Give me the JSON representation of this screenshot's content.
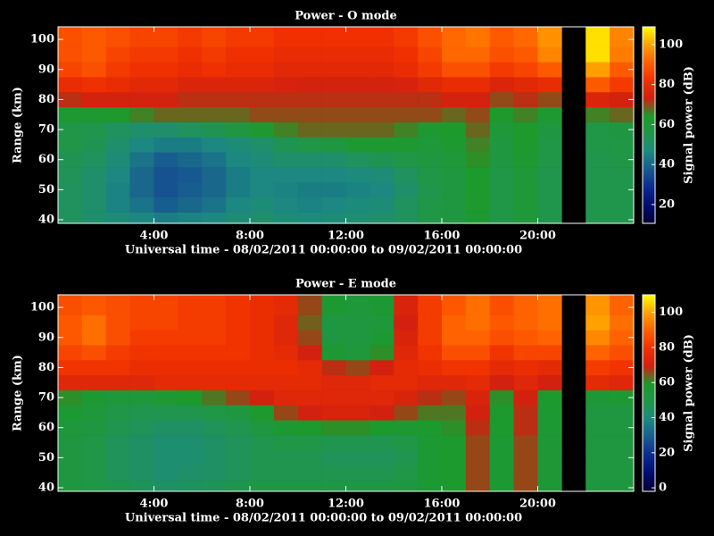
{
  "chart_data": [
    {
      "type": "heatmap",
      "title": "Power - O mode",
      "x_label": "Universal time - 08/02/2011 00:00:00 to 09/02/2011 00:00:00",
      "y_label": "Range (km)",
      "x": [
        0.5,
        1.5,
        2.5,
        3.5,
        4.5,
        5.5,
        6.5,
        7.5,
        8.5,
        9.5,
        10.5,
        11.5,
        12.5,
        13.5,
        14.5,
        15.5,
        16.5,
        17.5,
        18.5,
        19.5,
        20.5,
        21.5,
        22.5,
        23.5
      ],
      "y": [
        40,
        45,
        50,
        55,
        60,
        65,
        70,
        75,
        80,
        85,
        90,
        95,
        100,
        105
      ],
      "values": [
        [
          52,
          50,
          48,
          46,
          44,
          45,
          46,
          48,
          50,
          48,
          47,
          48,
          49,
          50,
          52,
          56,
          58,
          62,
          56,
          60,
          55,
          null,
          55,
          55
        ],
        [
          52,
          50,
          45,
          42,
          38,
          40,
          42,
          46,
          48,
          46,
          45,
          46,
          47,
          48,
          52,
          56,
          58,
          63,
          56,
          60,
          55,
          null,
          55,
          55
        ],
        [
          52,
          50,
          45,
          40,
          36,
          38,
          40,
          44,
          46,
          45,
          44,
          44,
          45,
          46,
          50,
          55,
          58,
          64,
          56,
          60,
          55,
          null,
          55,
          55
        ],
        [
          53,
          50,
          46,
          40,
          36,
          37,
          40,
          44,
          46,
          46,
          46,
          46,
          47,
          48,
          52,
          56,
          58,
          64,
          56,
          60,
          55,
          null,
          55,
          55
        ],
        [
          54,
          52,
          48,
          42,
          38,
          40,
          42,
          46,
          48,
          50,
          50,
          50,
          52,
          54,
          56,
          58,
          60,
          65,
          58,
          62,
          56,
          null,
          55,
          56
        ],
        [
          56,
          54,
          50,
          46,
          44,
          44,
          46,
          48,
          50,
          54,
          56,
          58,
          62,
          62,
          62,
          60,
          62,
          66,
          58,
          63,
          57,
          null,
          56,
          57
        ],
        [
          56,
          55,
          52,
          50,
          50,
          52,
          54,
          58,
          62,
          66,
          68,
          68,
          68,
          68,
          66,
          62,
          64,
          68,
          60,
          64,
          58,
          null,
          57,
          58
        ],
        [
          62,
          62,
          64,
          66,
          68,
          68,
          68,
          68,
          70,
          70,
          70,
          70,
          70,
          70,
          70,
          70,
          68,
          70,
          64,
          66,
          62,
          null,
          66,
          68
        ],
        [
          72,
          74,
          74,
          74,
          74,
          72,
          72,
          72,
          72,
          72,
          72,
          72,
          72,
          72,
          72,
          72,
          74,
          74,
          70,
          72,
          70,
          null,
          76,
          74
        ],
        [
          80,
          82,
          80,
          78,
          78,
          76,
          76,
          76,
          76,
          75,
          74,
          74,
          74,
          74,
          75,
          78,
          80,
          80,
          76,
          78,
          80,
          null,
          90,
          84
        ],
        [
          86,
          88,
          84,
          82,
          82,
          80,
          82,
          80,
          80,
          78,
          78,
          78,
          78,
          78,
          80,
          84,
          88,
          88,
          84,
          86,
          90,
          null,
          100,
          90
        ],
        [
          88,
          90,
          86,
          84,
          84,
          82,
          84,
          82,
          82,
          80,
          80,
          80,
          80,
          80,
          82,
          86,
          92,
          92,
          88,
          90,
          96,
          null,
          106,
          95
        ],
        [
          88,
          90,
          88,
          86,
          86,
          84,
          86,
          84,
          84,
          82,
          82,
          82,
          82,
          82,
          84,
          88,
          92,
          94,
          90,
          92,
          98,
          null,
          106,
          96
        ],
        [
          88,
          90,
          88,
          86,
          86,
          84,
          86,
          84,
          84,
          82,
          82,
          82,
          82,
          82,
          84,
          88,
          92,
          94,
          90,
          92,
          98,
          null,
          106,
          96
        ]
      ],
      "xlim": [
        0,
        24
      ],
      "xticks": [
        {
          "value": 4,
          "label": "4:00"
        },
        {
          "value": 8,
          "label": "8:00"
        },
        {
          "value": 12,
          "label": "12:00"
        },
        {
          "value": 16,
          "label": "16:00"
        },
        {
          "value": 20,
          "label": "20:00"
        }
      ],
      "ylim": [
        38.8,
        104.2
      ],
      "yticks": [
        40,
        50,
        60,
        70,
        80,
        90,
        100
      ],
      "colorbar": {
        "label": "Signal power (dB)",
        "lim": [
          10.6,
          108.9
        ],
        "ticks": [
          20,
          40,
          60,
          80,
          100
        ]
      },
      "colormap": [
        "#000030",
        "#000c70",
        "#0a2a90",
        "#185a90",
        "#1c8a80",
        "#20964a",
        "#1c9a2a",
        "#d02010",
        "#f03000",
        "#ff6000",
        "#ffa000",
        "#ffff00"
      ]
    },
    {
      "type": "heatmap",
      "title": "Power - E mode",
      "x_label": "Universal time - 08/02/2011 00:00:00 to 09/02/2011 00:00:00",
      "y_label": "Range (km)",
      "x": [
        0.5,
        1.5,
        2.5,
        3.5,
        4.5,
        5.5,
        6.5,
        7.5,
        8.5,
        9.5,
        10.5,
        11.5,
        12.5,
        13.5,
        14.5,
        15.5,
        16.5,
        17.5,
        18.5,
        19.5,
        20.5,
        21.5,
        22.5,
        23.5
      ],
      "y": [
        40,
        45,
        50,
        55,
        60,
        65,
        70,
        75,
        80,
        85,
        90,
        95,
        100,
        105
      ],
      "values": [
        [
          52,
          50,
          48,
          46,
          44,
          45,
          46,
          48,
          50,
          50,
          50,
          50,
          50,
          50,
          52,
          56,
          58,
          66,
          56,
          66,
          55,
          null,
          52,
          52
        ],
        [
          52,
          50,
          46,
          44,
          42,
          43,
          44,
          46,
          48,
          48,
          48,
          48,
          48,
          48,
          50,
          56,
          58,
          66,
          56,
          66,
          55,
          null,
          52,
          52
        ],
        [
          52,
          50,
          46,
          44,
          42,
          42,
          44,
          46,
          48,
          48,
          48,
          46,
          46,
          46,
          48,
          56,
          58,
          66,
          56,
          66,
          55,
          null,
          52,
          52
        ],
        [
          52,
          50,
          46,
          44,
          42,
          42,
          44,
          46,
          48,
          50,
          50,
          48,
          48,
          48,
          50,
          56,
          58,
          66,
          56,
          66,
          55,
          null,
          52,
          52
        ],
        [
          54,
          52,
          48,
          46,
          44,
          44,
          46,
          48,
          52,
          56,
          58,
          60,
          60,
          58,
          56,
          58,
          60,
          68,
          58,
          68,
          56,
          null,
          52,
          52
        ],
        [
          56,
          54,
          50,
          48,
          48,
          48,
          50,
          52,
          58,
          66,
          70,
          72,
          72,
          70,
          66,
          62,
          62,
          70,
          58,
          68,
          56,
          null,
          52,
          52
        ],
        [
          60,
          56,
          54,
          54,
          56,
          58,
          62,
          66,
          70,
          74,
          74,
          74,
          74,
          74,
          72,
          68,
          66,
          72,
          60,
          70,
          58,
          null,
          55,
          56
        ],
        [
          74,
          74,
          74,
          74,
          76,
          76,
          76,
          76,
          76,
          76,
          76,
          74,
          74,
          76,
          76,
          74,
          74,
          76,
          70,
          74,
          70,
          null,
          76,
          74
        ],
        [
          80,
          80,
          80,
          78,
          78,
          78,
          78,
          78,
          78,
          78,
          76,
          68,
          66,
          70,
          76,
          78,
          80,
          80,
          76,
          78,
          76,
          null,
          82,
          80
        ],
        [
          84,
          86,
          82,
          80,
          80,
          80,
          80,
          80,
          78,
          76,
          70,
          56,
          54,
          60,
          74,
          80,
          86,
          86,
          80,
          84,
          84,
          null,
          90,
          86
        ],
        [
          88,
          92,
          86,
          82,
          82,
          82,
          82,
          80,
          78,
          74,
          66,
          52,
          52,
          56,
          72,
          82,
          90,
          90,
          86,
          88,
          90,
          null,
          96,
          90
        ],
        [
          88,
          92,
          86,
          84,
          84,
          82,
          82,
          80,
          78,
          74,
          64,
          52,
          52,
          54,
          70,
          82,
          90,
          92,
          88,
          90,
          92,
          null,
          100,
          92
        ],
        [
          86,
          88,
          86,
          84,
          84,
          82,
          82,
          80,
          78,
          76,
          66,
          56,
          54,
          56,
          72,
          82,
          88,
          92,
          86,
          90,
          92,
          null,
          98,
          90
        ],
        [
          86,
          88,
          86,
          84,
          84,
          82,
          82,
          80,
          78,
          76,
          66,
          56,
          54,
          56,
          72,
          82,
          88,
          92,
          86,
          90,
          92,
          null,
          98,
          90
        ]
      ],
      "xlim": [
        0,
        24
      ],
      "xticks": [
        {
          "value": 4,
          "label": "4:00"
        },
        {
          "value": 8,
          "label": "8:00"
        },
        {
          "value": 12,
          "label": "12:00"
        },
        {
          "value": 16,
          "label": "16:00"
        },
        {
          "value": 20,
          "label": "20:00"
        }
      ],
      "ylim": [
        38.8,
        104.2
      ],
      "yticks": [
        40,
        50,
        60,
        70,
        80,
        90,
        100
      ],
      "colorbar": {
        "label": "Signal power (dB)",
        "lim": [
          -2,
          110
        ],
        "ticks": [
          0,
          20,
          40,
          60,
          80,
          100
        ]
      },
      "colormap": [
        "#000030",
        "#000c70",
        "#0a2a90",
        "#185a90",
        "#1c8a80",
        "#20964a",
        "#1c9a2a",
        "#d02010",
        "#f03000",
        "#ff6000",
        "#ffa000",
        "#ffff00"
      ]
    }
  ]
}
